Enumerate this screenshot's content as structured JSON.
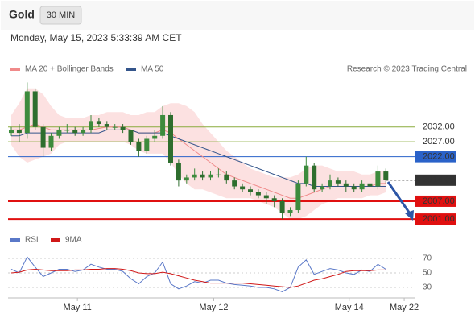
{
  "header": {
    "title": "Gold",
    "interval": "30 MIN",
    "timestamp": "Monday, May 15, 2023 5:33:39 AM CET"
  },
  "chart_data": [
    {
      "type": "candlestick",
      "source": "Research © 2023 Trading Central",
      "up_color": "#3d8b3d",
      "down_color": "#2e6e2e",
      "candles": {
        "open": [
          2030,
          2031,
          2030,
          2044,
          2032,
          2025,
          2029,
          2031,
          2031,
          2030,
          2031,
          2034,
          2033,
          2032,
          2032,
          2031,
          2027,
          2024,
          2028,
          2029,
          2036,
          2020,
          2014,
          2015,
          2016,
          2015,
          2016,
          2016,
          2014,
          2012,
          2011,
          2010,
          2009,
          2008,
          2007,
          2003,
          2004,
          2013,
          2019,
          2011,
          2012,
          2014,
          2013,
          2012,
          2011,
          2013,
          2012,
          2017
        ],
        "high": [
          2032,
          2033,
          2047,
          2045,
          2033,
          2030,
          2032,
          2033,
          2032,
          2032,
          2036,
          2035,
          2034,
          2033,
          2033,
          2031,
          2028,
          2029,
          2031,
          2039,
          2037,
          2021,
          2016,
          2018,
          2017,
          2017,
          2018,
          2017,
          2015,
          2013,
          2012,
          2011,
          2010,
          2009,
          2008,
          2005,
          2014,
          2022,
          2020,
          2013,
          2016,
          2015,
          2014,
          2013,
          2014,
          2014,
          2019,
          2018
        ],
        "low": [
          2029,
          2027,
          2028,
          2031,
          2022,
          2024,
          2028,
          2030,
          2029,
          2029,
          2030,
          2032,
          2031,
          2031,
          2030,
          2026,
          2022,
          2023,
          2027,
          2028,
          2019,
          2012,
          2013,
          2014,
          2014,
          2014,
          2015,
          2013,
          2011,
          2010,
          2009,
          2008,
          2006,
          2005,
          2001,
          2002,
          2003,
          2012,
          2010,
          2010,
          2011,
          2012,
          2010,
          2010,
          2010,
          2011,
          2011,
          2013
        ],
        "close": [
          2031,
          2030,
          2044,
          2032,
          2025,
          2029,
          2031,
          2031,
          2030,
          2031,
          2034,
          2033,
          2032,
          2032,
          2031,
          2027,
          2024,
          2028,
          2029,
          2036,
          2020,
          2014,
          2015,
          2016,
          2015,
          2016,
          2016,
          2014,
          2012,
          2011,
          2010,
          2009,
          2008,
          2007,
          2003,
          2004,
          2013,
          2019,
          2011,
          2012,
          2014,
          2013,
          2012,
          2011,
          2013,
          2012,
          2017,
          2014.08
        ]
      },
      "series": [
        {
          "name": "MA 20 + Bollinger Bands",
          "color": "#f08a8a",
          "values": [
            2031,
            2031,
            2032,
            2033,
            2032,
            2031,
            2031,
            2031,
            2031,
            2031,
            2031,
            2031.5,
            2032,
            2032,
            2032,
            2031,
            2030,
            2030,
            2030,
            2031,
            2030,
            2028,
            2026,
            2024,
            2022,
            2020,
            2018,
            2016,
            2015,
            2014,
            2013,
            2012,
            2011,
            2010,
            2009,
            2008,
            2008,
            2009,
            2010,
            2011,
            2012,
            2012,
            2012,
            2012,
            2012,
            2012,
            2013,
            2013
          ],
          "upper": [
            2036,
            2040,
            2045,
            2045,
            2043,
            2039,
            2036,
            2035,
            2035,
            2035,
            2036,
            2036,
            2037,
            2037,
            2037,
            2036,
            2036,
            2037,
            2037,
            2039,
            2040,
            2040,
            2039,
            2037,
            2033,
            2030,
            2027,
            2024,
            2022,
            2020,
            2018,
            2017,
            2016,
            2015,
            2015,
            2015,
            2016,
            2018,
            2019,
            2019,
            2018,
            2017,
            2017,
            2017,
            2016,
            2016,
            2017,
            2017
          ],
          "lower": [
            2026,
            2022,
            2020,
            2021,
            2022,
            2023,
            2026,
            2027,
            2027,
            2027,
            2027,
            2027,
            2027,
            2027,
            2027,
            2026,
            2024,
            2023,
            2023,
            2023,
            2020,
            2016,
            2013,
            2011,
            2011,
            2010,
            2009,
            2008,
            2008,
            2008,
            2008,
            2007,
            2006,
            2005,
            2003,
            2001,
            2001,
            2002,
            2004,
            2006,
            2007,
            2008,
            2008,
            2008,
            2008,
            2009,
            2009,
            2010
          ]
        },
        {
          "name": "MA 50",
          "color": "#34558b",
          "values": [
            2029,
            2029,
            2030,
            2030,
            2030,
            2030,
            2030,
            2030,
            2030,
            2030,
            2030,
            2030,
            2031,
            2031,
            2031,
            2031,
            2030,
            2030,
            2030,
            2030,
            2029,
            2028,
            2027,
            2026,
            2025,
            2024,
            2023,
            2022,
            2021,
            2020,
            2019,
            2018,
            2017,
            2016,
            2015,
            2014,
            2013,
            2013,
            2012,
            2012,
            2012,
            2012,
            2012,
            2012,
            2012,
            2012,
            2012,
            2012
          ]
        }
      ],
      "levels": [
        {
          "value": 2032,
          "label": "2032.00",
          "color": "#8aab3c",
          "style": "text"
        },
        {
          "value": 2027,
          "label": "2027.00",
          "color": "#8aab3c",
          "style": "text"
        },
        {
          "value": 2022,
          "label": "2022.00",
          "color": "#2a62c9",
          "style": "box"
        },
        {
          "value": 2007,
          "label": "2007.00",
          "color": "#e01010",
          "style": "box"
        },
        {
          "value": 2001,
          "label": "2001.00",
          "color": "#e01010",
          "style": "box"
        }
      ],
      "last_color": "#333333",
      "ylim": [
        1997.5,
        2049
      ]
    },
    {
      "type": "line",
      "series": [
        {
          "name": "RSI",
          "color": "#5a78c8",
          "values": [
            55,
            50,
            72,
            58,
            45,
            50,
            55,
            55,
            52,
            54,
            62,
            58,
            55,
            55,
            52,
            42,
            35,
            45,
            50,
            65,
            35,
            28,
            32,
            38,
            36,
            40,
            40,
            36,
            34,
            33,
            32,
            30,
            30,
            28,
            24,
            30,
            58,
            68,
            48,
            52,
            56,
            54,
            50,
            48,
            54,
            52,
            62,
            55
          ]
        },
        {
          "name": "9MA",
          "color": "#d01818",
          "values": [
            50,
            51,
            54,
            55,
            54,
            53,
            53,
            53,
            54,
            54,
            55,
            55,
            56,
            56,
            55,
            53,
            50,
            49,
            49,
            51,
            49,
            46,
            43,
            40,
            38,
            36,
            36,
            36,
            36,
            36,
            35,
            34,
            33,
            32,
            31,
            30,
            32,
            36,
            40,
            42,
            45,
            48,
            52,
            53,
            53,
            53,
            54,
            54
          ]
        }
      ],
      "ylim": [
        15,
        80
      ],
      "yticks": [
        70,
        50,
        30
      ],
      "xticks": [
        {
          "value": 8.3,
          "label": "May 11"
        },
        {
          "value": 25.4,
          "label": "May 12"
        },
        {
          "value": 42.4,
          "label": "May 14"
        },
        {
          "value": 49.3,
          "label": "May 22"
        }
      ]
    }
  ]
}
